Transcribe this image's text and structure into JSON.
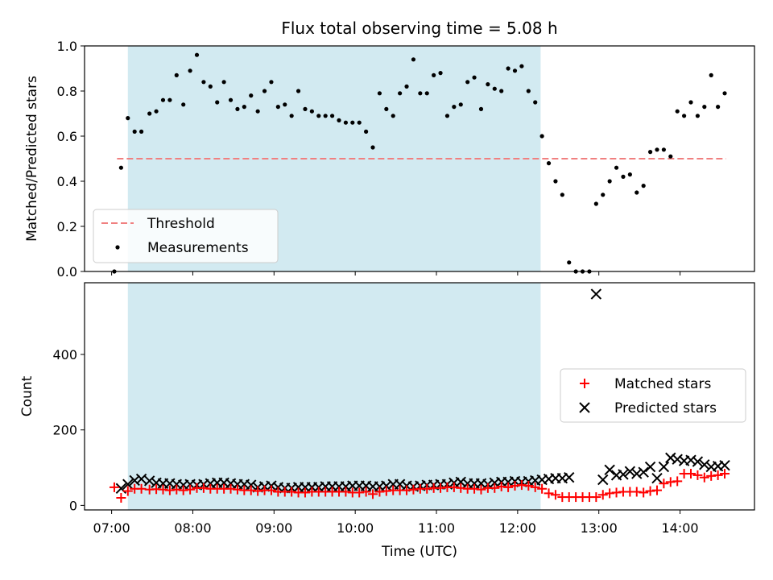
{
  "title": "Flux total observing time = 5.08 h",
  "xlabel": "Time (UTC)",
  "x_ticks": [
    "07:00",
    "08:00",
    "09:00",
    "10:00",
    "11:00",
    "12:00",
    "13:00",
    "14:00"
  ],
  "colors": {
    "shaded": "#add8e6",
    "threshold": "#f08080",
    "measurement": "#000000",
    "matched": "#ff0000",
    "predicted": "#000000"
  },
  "chart_data": [
    {
      "type": "scatter",
      "ylabel": "Matched/Predicted stars",
      "xlim": [
        "06:40",
        "14:55"
      ],
      "ylim": [
        0,
        1.0
      ],
      "y_ticks": [
        "0.0",
        "0.2",
        "0.4",
        "0.6",
        "0.8",
        "1.0"
      ],
      "shaded_span": [
        "07:12",
        "12:17"
      ],
      "threshold": {
        "name": "Threshold",
        "value": 0.5,
        "x_range": [
          "07:04",
          "14:34"
        ],
        "style": "dashed"
      },
      "legend": {
        "placement": "lower-left",
        "entries": [
          "Threshold",
          "Measurements"
        ]
      },
      "series": [
        {
          "name": "Measurements",
          "x": [
            "07:02",
            "07:07",
            "07:12",
            "07:17",
            "07:22",
            "07:28",
            "07:33",
            "07:38",
            "07:43",
            "07:48",
            "07:53",
            "07:58",
            "08:03",
            "08:08",
            "08:13",
            "08:18",
            "08:23",
            "08:28",
            "08:33",
            "08:38",
            "08:43",
            "08:48",
            "08:53",
            "08:58",
            "09:03",
            "09:08",
            "09:13",
            "09:18",
            "09:23",
            "09:28",
            "09:33",
            "09:38",
            "09:43",
            "09:48",
            "09:53",
            "09:58",
            "10:03",
            "10:08",
            "10:13",
            "10:18",
            "10:23",
            "10:28",
            "10:33",
            "10:38",
            "10:43",
            "10:48",
            "10:53",
            "10:58",
            "11:03",
            "11:08",
            "11:13",
            "11:18",
            "11:23",
            "11:28",
            "11:33",
            "11:38",
            "11:43",
            "11:48",
            "11:53",
            "11:58",
            "12:03",
            "12:08",
            "12:13",
            "12:18",
            "12:23",
            "12:28",
            "12:33",
            "12:38",
            "12:43",
            "12:48",
            "12:53",
            "12:58",
            "13:03",
            "13:08",
            "13:13",
            "13:18",
            "13:23",
            "13:28",
            "13:33",
            "13:38",
            "13:43",
            "13:48",
            "13:53",
            "13:58",
            "14:03",
            "14:08",
            "14:13",
            "14:18",
            "14:23",
            "14:28",
            "14:33"
          ],
          "y": [
            0.0,
            0.46,
            0.68,
            0.62,
            0.62,
            0.7,
            0.71,
            0.76,
            0.76,
            0.87,
            0.74,
            0.89,
            0.96,
            0.84,
            0.82,
            0.75,
            0.84,
            0.76,
            0.72,
            0.73,
            0.78,
            0.71,
            0.8,
            0.84,
            0.73,
            0.74,
            0.69,
            0.8,
            0.72,
            0.71,
            0.69,
            0.69,
            0.69,
            0.67,
            0.66,
            0.66,
            0.66,
            0.62,
            0.55,
            0.79,
            0.72,
            0.69,
            0.79,
            0.82,
            0.94,
            0.79,
            0.79,
            0.87,
            0.88,
            0.69,
            0.73,
            0.74,
            0.84,
            0.86,
            0.72,
            0.83,
            0.81,
            0.8,
            0.9,
            0.89,
            0.91,
            0.8,
            0.75,
            0.6,
            0.48,
            0.4,
            0.34,
            0.04,
            0.0,
            0.0,
            0.0,
            0.3,
            0.34,
            0.4,
            0.46,
            0.42,
            0.43,
            0.35,
            0.38,
            0.53,
            0.54,
            0.54,
            0.51,
            0.71,
            0.69,
            0.75,
            0.69,
            0.73,
            0.87,
            0.73,
            0.79
          ]
        }
      ]
    },
    {
      "type": "scatter",
      "ylabel": "Count",
      "xlim": [
        "06:40",
        "14:55"
      ],
      "ylim": [
        -12,
        590
      ],
      "y_ticks": [
        "0",
        "200",
        "400"
      ],
      "shaded_span": [
        "07:12",
        "12:17"
      ],
      "legend": {
        "placement": "center-right",
        "entries": [
          "Matched stars",
          "Predicted stars"
        ]
      },
      "series": [
        {
          "name": "Matched stars",
          "marker": "+",
          "x": [
            "07:02",
            "07:07",
            "07:12",
            "07:17",
            "07:22",
            "07:28",
            "07:33",
            "07:38",
            "07:43",
            "07:48",
            "07:53",
            "07:58",
            "08:03",
            "08:08",
            "08:13",
            "08:18",
            "08:23",
            "08:28",
            "08:33",
            "08:38",
            "08:43",
            "08:48",
            "08:53",
            "08:58",
            "09:03",
            "09:08",
            "09:13",
            "09:18",
            "09:23",
            "09:28",
            "09:33",
            "09:38",
            "09:43",
            "09:48",
            "09:53",
            "09:58",
            "10:03",
            "10:08",
            "10:13",
            "10:18",
            "10:23",
            "10:28",
            "10:33",
            "10:38",
            "10:43",
            "10:48",
            "10:53",
            "10:58",
            "11:03",
            "11:08",
            "11:13",
            "11:18",
            "11:23",
            "11:28",
            "11:33",
            "11:38",
            "11:43",
            "11:48",
            "11:53",
            "11:58",
            "12:03",
            "12:08",
            "12:13",
            "12:18",
            "12:23",
            "12:28",
            "12:33",
            "12:38",
            "12:43",
            "12:48",
            "12:53",
            "12:58",
            "13:03",
            "13:08",
            "13:13",
            "13:18",
            "13:23",
            "13:28",
            "13:33",
            "13:38",
            "13:43",
            "13:48",
            "13:53",
            "13:58",
            "14:03",
            "14:08",
            "14:13",
            "14:18",
            "14:23",
            "14:28",
            "14:33"
          ],
          "y": [
            48,
            20,
            38,
            44,
            44,
            42,
            43,
            42,
            40,
            42,
            40,
            42,
            46,
            46,
            44,
            44,
            44,
            44,
            42,
            40,
            40,
            38,
            40,
            40,
            36,
            36,
            36,
            34,
            34,
            36,
            36,
            36,
            36,
            36,
            36,
            34,
            34,
            36,
            30,
            36,
            38,
            40,
            40,
            40,
            42,
            44,
            44,
            46,
            46,
            48,
            48,
            46,
            44,
            44,
            42,
            46,
            46,
            50,
            48,
            52,
            54,
            52,
            48,
            44,
            32,
            28,
            22,
            22,
            22,
            22,
            22,
            22,
            28,
            32,
            34,
            36,
            36,
            36,
            34,
            38,
            40,
            58,
            62,
            64,
            84,
            84,
            80,
            74,
            78,
            80,
            84
          ]
        },
        {
          "name": "Predicted stars",
          "marker": "x",
          "x": [
            "07:07",
            "07:12",
            "07:17",
            "07:22",
            "07:28",
            "07:33",
            "07:38",
            "07:43",
            "07:48",
            "07:53",
            "07:58",
            "08:03",
            "08:08",
            "08:13",
            "08:18",
            "08:23",
            "08:28",
            "08:33",
            "08:38",
            "08:43",
            "08:48",
            "08:53",
            "08:58",
            "09:03",
            "09:08",
            "09:13",
            "09:18",
            "09:23",
            "09:28",
            "09:33",
            "09:38",
            "09:43",
            "09:48",
            "09:53",
            "09:58",
            "10:03",
            "10:08",
            "10:13",
            "10:18",
            "10:23",
            "10:28",
            "10:33",
            "10:38",
            "10:43",
            "10:48",
            "10:53",
            "10:58",
            "11:03",
            "11:08",
            "11:13",
            "11:18",
            "11:23",
            "11:28",
            "11:33",
            "11:38",
            "11:43",
            "11:48",
            "11:53",
            "11:58",
            "12:03",
            "12:08",
            "12:13",
            "12:18",
            "12:23",
            "12:28",
            "12:33",
            "12:38",
            "12:58",
            "13:03",
            "13:08",
            "13:13",
            "13:18",
            "13:23",
            "13:28",
            "13:33",
            "13:38",
            "13:43",
            "13:48",
            "13:53",
            "13:58",
            "14:03",
            "14:08",
            "14:13",
            "14:18",
            "14:23",
            "14:28",
            "14:33"
          ],
          "y": [
            45,
            56,
            66,
            70,
            65,
            60,
            58,
            58,
            56,
            54,
            56,
            54,
            56,
            58,
            60,
            60,
            58,
            56,
            56,
            54,
            48,
            50,
            52,
            48,
            46,
            46,
            48,
            48,
            48,
            48,
            50,
            50,
            50,
            50,
            52,
            52,
            52,
            50,
            50,
            52,
            56,
            56,
            52,
            50,
            52,
            54,
            54,
            56,
            56,
            60,
            62,
            58,
            58,
            58,
            56,
            60,
            62,
            62,
            64,
            62,
            64,
            66,
            68,
            70,
            72,
            72,
            74,
            560,
            68,
            94,
            80,
            82,
            90,
            84,
            88,
            102,
            72,
            102,
            126,
            122,
            118,
            120,
            116,
            108,
            102,
            104,
            106
          ]
        }
      ]
    }
  ]
}
